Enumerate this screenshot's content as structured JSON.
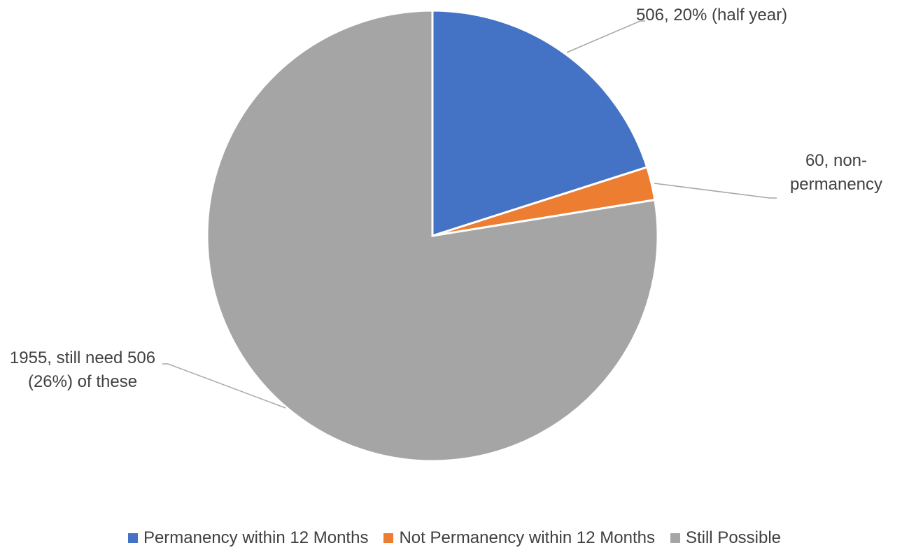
{
  "chart_data": {
    "type": "pie",
    "categories": [
      "Permanency within 12 Months",
      "Not Permanency within 12 Months",
      "Still Possible"
    ],
    "values": [
      506,
      60,
      1955
    ],
    "value_labels": [
      "506, 20% (half year)",
      "60, non-permanency",
      "1955, still need 506 (26%) of these"
    ],
    "colors": [
      "#4472c4",
      "#ed7d31",
      "#a5a5a5"
    ],
    "legend": "bottom"
  }
}
